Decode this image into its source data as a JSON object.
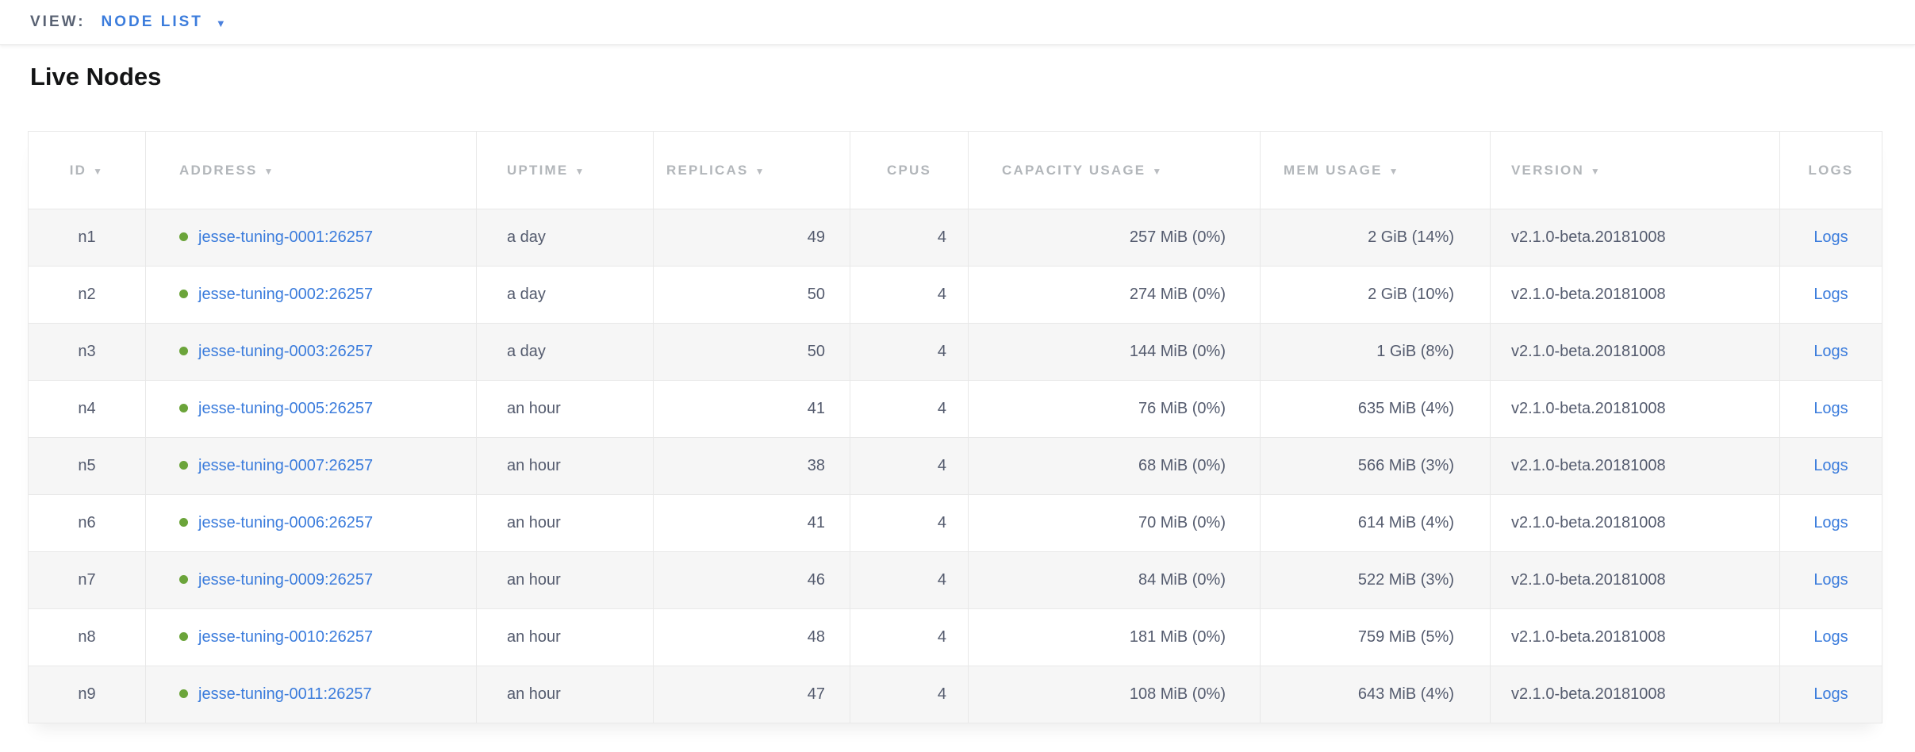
{
  "topbar": {
    "view_label": "VIEW:",
    "view_value": "NODE LIST"
  },
  "page": {
    "title": "Live Nodes"
  },
  "icons": {
    "caret_down": "▼",
    "sort_desc": "▼",
    "status_dot": "live-green-dot"
  },
  "colors": {
    "link_blue": "#3b7cdc",
    "status_green": "#6ba43a",
    "header_gray": "#b2b6ba",
    "body_text_slate": "#545b6e"
  },
  "table": {
    "columns": [
      {
        "key": "id",
        "label": "ID",
        "sortable": true
      },
      {
        "key": "address",
        "label": "ADDRESS",
        "sortable": true
      },
      {
        "key": "uptime",
        "label": "UPTIME",
        "sortable": true
      },
      {
        "key": "replicas",
        "label": "REPLICAS",
        "sortable": true
      },
      {
        "key": "cpus",
        "label": "CPUS",
        "sortable": false
      },
      {
        "key": "capacity",
        "label": "CAPACITY USAGE",
        "sortable": true
      },
      {
        "key": "mem",
        "label": "MEM USAGE",
        "sortable": true
      },
      {
        "key": "version",
        "label": "VERSION",
        "sortable": true
      },
      {
        "key": "logs",
        "label": "LOGS",
        "sortable": false
      }
    ],
    "rows": [
      {
        "id": "n1",
        "address": "jesse-tuning-0001:26257",
        "uptime": "a day",
        "replicas": "49",
        "cpus": "4",
        "capacity": "257 MiB (0%)",
        "mem": "2 GiB (14%)",
        "version": "v2.1.0-beta.20181008",
        "logs": "Logs"
      },
      {
        "id": "n2",
        "address": "jesse-tuning-0002:26257",
        "uptime": "a day",
        "replicas": "50",
        "cpus": "4",
        "capacity": "274 MiB (0%)",
        "mem": "2 GiB (10%)",
        "version": "v2.1.0-beta.20181008",
        "logs": "Logs"
      },
      {
        "id": "n3",
        "address": "jesse-tuning-0003:26257",
        "uptime": "a day",
        "replicas": "50",
        "cpus": "4",
        "capacity": "144 MiB (0%)",
        "mem": "1 GiB (8%)",
        "version": "v2.1.0-beta.20181008",
        "logs": "Logs"
      },
      {
        "id": "n4",
        "address": "jesse-tuning-0005:26257",
        "uptime": "an hour",
        "replicas": "41",
        "cpus": "4",
        "capacity": "76 MiB (0%)",
        "mem": "635 MiB (4%)",
        "version": "v2.1.0-beta.20181008",
        "logs": "Logs"
      },
      {
        "id": "n5",
        "address": "jesse-tuning-0007:26257",
        "uptime": "an hour",
        "replicas": "38",
        "cpus": "4",
        "capacity": "68 MiB (0%)",
        "mem": "566 MiB (3%)",
        "version": "v2.1.0-beta.20181008",
        "logs": "Logs"
      },
      {
        "id": "n6",
        "address": "jesse-tuning-0006:26257",
        "uptime": "an hour",
        "replicas": "41",
        "cpus": "4",
        "capacity": "70 MiB (0%)",
        "mem": "614 MiB (4%)",
        "version": "v2.1.0-beta.20181008",
        "logs": "Logs"
      },
      {
        "id": "n7",
        "address": "jesse-tuning-0009:26257",
        "uptime": "an hour",
        "replicas": "46",
        "cpus": "4",
        "capacity": "84 MiB (0%)",
        "mem": "522 MiB (3%)",
        "version": "v2.1.0-beta.20181008",
        "logs": "Logs"
      },
      {
        "id": "n8",
        "address": "jesse-tuning-0010:26257",
        "uptime": "an hour",
        "replicas": "48",
        "cpus": "4",
        "capacity": "181 MiB (0%)",
        "mem": "759 MiB (5%)",
        "version": "v2.1.0-beta.20181008",
        "logs": "Logs"
      },
      {
        "id": "n9",
        "address": "jesse-tuning-0011:26257",
        "uptime": "an hour",
        "replicas": "47",
        "cpus": "4",
        "capacity": "108 MiB (0%)",
        "mem": "643 MiB (4%)",
        "version": "v2.1.0-beta.20181008",
        "logs": "Logs"
      }
    ]
  }
}
